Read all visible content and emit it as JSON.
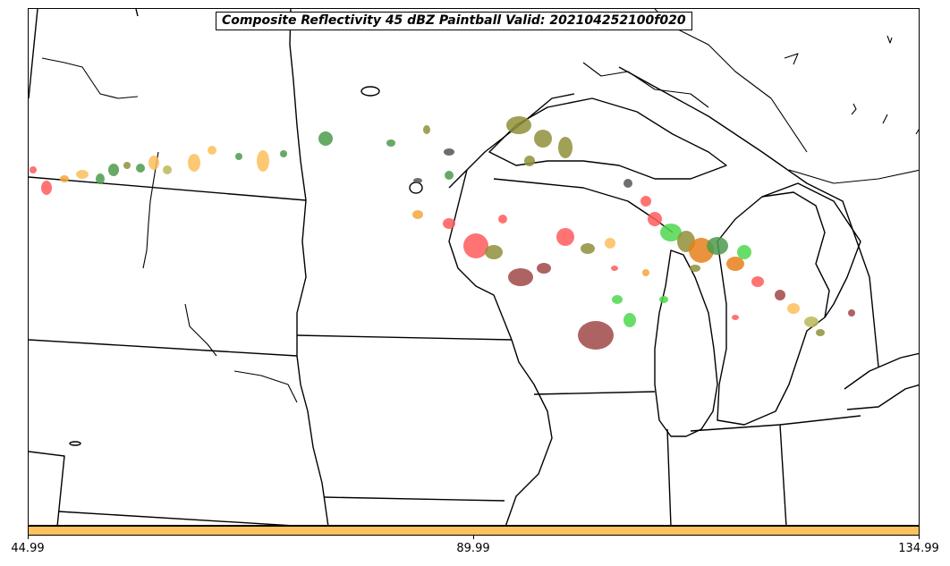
{
  "title": "Composite Reflectivity 45 dBZ Paintball Valid: 202104252100f020",
  "colorbar": {
    "color": "#FDC25E",
    "ticks": [
      "44.99",
      "89.99",
      "134.99"
    ]
  },
  "map": {
    "colors": {
      "land_line": "#000000",
      "member_colors": [
        "#4C9A4C",
        "#8F8F3A",
        "#FF5A5A",
        "#F4A63A",
        "#FDBE5A",
        "#B8B858",
        "#A04848",
        "#555555",
        "#4ED84E",
        "#E8801A"
      ]
    }
  }
}
